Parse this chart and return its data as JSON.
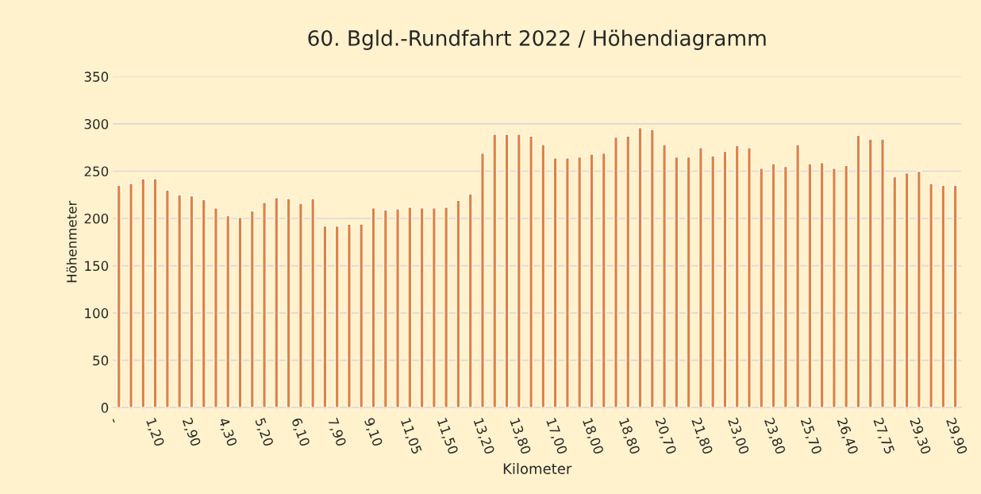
{
  "chart_data": {
    "type": "bar",
    "title": "60. Bgld.-Rundfahrt 2022 / Höhendiagramm",
    "xlabel": "Kilometer",
    "ylabel": "Höhenmeter",
    "categories": [
      "-",
      null,
      null,
      "1,20",
      null,
      null,
      "2,90",
      null,
      null,
      "4,30",
      null,
      null,
      "5,20",
      null,
      null,
      "6,10",
      null,
      null,
      "7,90",
      null,
      null,
      "9,10",
      null,
      null,
      "11,05",
      null,
      null,
      "11,50",
      null,
      null,
      "13,20",
      null,
      null,
      "13,80",
      null,
      null,
      "17,00",
      null,
      null,
      "18,00",
      null,
      null,
      "18,80",
      null,
      null,
      "20,70",
      null,
      null,
      "21,80",
      null,
      null,
      "23,00",
      null,
      null,
      "23,80",
      null,
      null,
      "25,70",
      null,
      null,
      "26,40",
      null,
      null,
      "27,75",
      null,
      null,
      "29,30",
      null,
      null,
      "29,90"
    ],
    "values": [
      235,
      237,
      242,
      242,
      230,
      225,
      224,
      220,
      211,
      203,
      201,
      208,
      217,
      222,
      221,
      216,
      221,
      192,
      192,
      194,
      194,
      211,
      209,
      210,
      212,
      211,
      211,
      212,
      219,
      226,
      269,
      289,
      289,
      289,
      287,
      278,
      264,
      264,
      265,
      268,
      269,
      286,
      287,
      296,
      294,
      278,
      265,
      265,
      275,
      266,
      271,
      277,
      275,
      253,
      258,
      255,
      278,
      258,
      259,
      253,
      256,
      288,
      284,
      284,
      244,
      248,
      250,
      237,
      235,
      235
    ],
    "color": "#ed7d31",
    "ylim": [
      0,
      350
    ],
    "yticks": [
      0,
      50,
      100,
      150,
      200,
      250,
      300,
      350
    ],
    "grid": "y"
  }
}
